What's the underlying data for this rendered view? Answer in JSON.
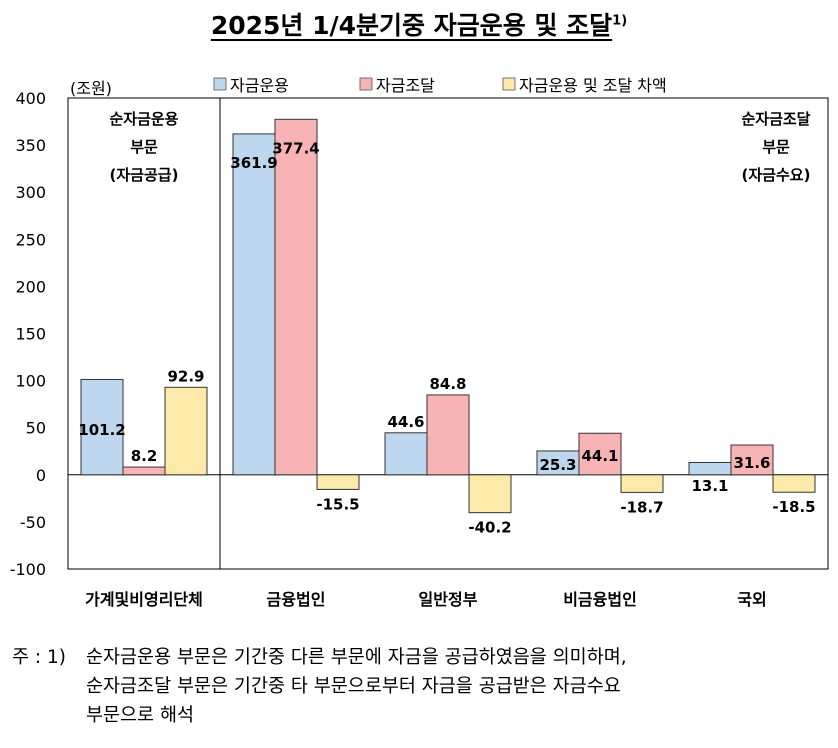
{
  "title": "2025년 1/4분기중 자금운용 및 조달",
  "title_sup": "1)",
  "chart_data": {
    "type": "bar",
    "unit_label": "(조원)",
    "categories": [
      "가계및비영리단체",
      "금융법인",
      "일반정부",
      "비금융법인",
      "국외"
    ],
    "series": [
      {
        "name": "자금운용",
        "values": [
          101.2,
          361.9,
          44.6,
          25.3,
          13.1
        ],
        "color": "#bdd7ee"
      },
      {
        "name": "자금조달",
        "values": [
          8.2,
          377.4,
          84.8,
          44.1,
          31.6
        ],
        "color": "#f8b4b4"
      },
      {
        "name": "자금운용 및 조달 차액",
        "values": [
          92.9,
          -15.5,
          -40.2,
          -18.7,
          -18.5
        ],
        "color": "#fde9a9"
      }
    ],
    "ylim": [
      -100,
      400
    ],
    "yticks": [
      "400",
      "350",
      "300",
      "250",
      "200",
      "150",
      "100",
      "50",
      "0",
      "-50",
      "-100"
    ],
    "legend_position": "top",
    "annotations": {
      "left": [
        "순자금운용",
        "부문",
        "(자금공급)"
      ],
      "right": [
        "순자금조달",
        "부문",
        "(자금수요)"
      ]
    }
  },
  "note": {
    "lead": "주 : 1)",
    "lines": [
      "순자금운용 부문은 기간중 다른 부문에 자금을 공급하였음을 의미하며,",
      "순자금조달 부문은 기간중 타 부문으로부터 자금을 공급받은 자금수요",
      "부문으로 해석"
    ]
  }
}
